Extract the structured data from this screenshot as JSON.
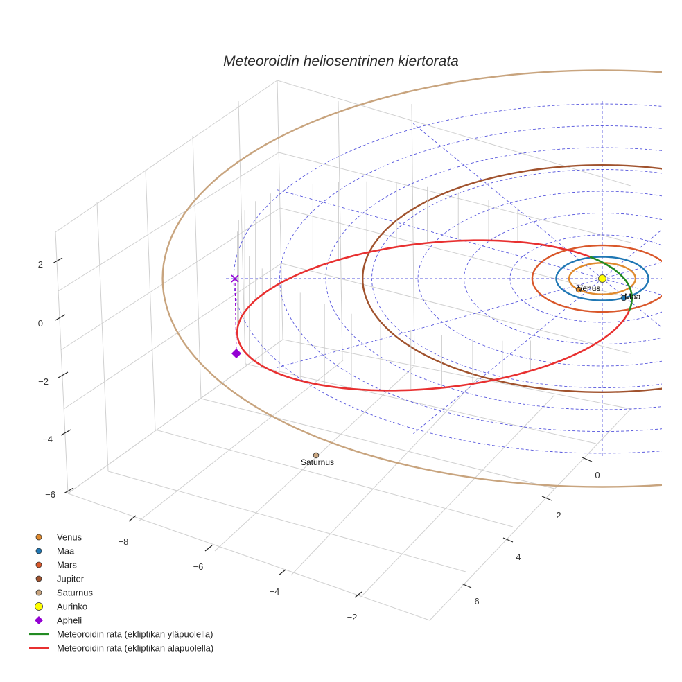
{
  "chart_data": {
    "type": "3d-orbit",
    "title": "Meteoroidin heliosentrinen kiertorata",
    "axes": {
      "x_ticks": [
        "−8",
        "−6",
        "−4",
        "−2"
      ],
      "y_ticks": [
        "0",
        "2",
        "4",
        "6"
      ],
      "z_ticks": [
        "2",
        "0",
        "−2",
        "−4",
        "−6"
      ]
    },
    "planets": [
      {
        "name": "Venus",
        "orbit_au": 0.72,
        "label": "Venus",
        "color": "#e08a2e"
      },
      {
        "name": "Maa",
        "orbit_au": 1.0,
        "label": "Maa",
        "color": "#1f77b4"
      },
      {
        "name": "Mars",
        "orbit_au": 1.52,
        "label": "Ma",
        "color": "#d9572a"
      },
      {
        "name": "Jupiter",
        "orbit_au": 5.2,
        "label": "",
        "color": "#a0522d"
      },
      {
        "name": "Saturnus",
        "orbit_au": 9.54,
        "label": "Saturnus",
        "color": "#c8a47e"
      }
    ],
    "sun": {
      "name": "Aurinko",
      "color": "#ffff00"
    },
    "aphelion": {
      "name": "Apheli",
      "color": "#9400d3"
    },
    "meteoroid": {
      "above_ecliptic": {
        "name": "Meteoroidin rata (ekliptikan yläpuolella)",
        "color": "#228b22"
      },
      "below_ecliptic": {
        "name": "Meteoroidin rata (ekliptikan alapuolella)",
        "color": "#e83030"
      }
    },
    "legend": [
      {
        "label": "Venus",
        "marker": "circle",
        "color": "#e08a2e"
      },
      {
        "label": "Maa",
        "marker": "circle",
        "color": "#1f77b4"
      },
      {
        "label": "Mars",
        "marker": "circle",
        "color": "#d9572a"
      },
      {
        "label": "Jupiter",
        "marker": "circle",
        "color": "#a0522d"
      },
      {
        "label": "Saturnus",
        "marker": "circle",
        "color": "#c8a47e"
      },
      {
        "label": "Aurinko",
        "marker": "circle",
        "color": "#ffff00"
      },
      {
        "label": "Apheli",
        "marker": "diamond",
        "color": "#9400d3"
      },
      {
        "label": "Meteoroidin rata (ekliptikan yläpuolella)",
        "marker": "line",
        "color": "#228b22"
      },
      {
        "label": "Meteoroidin rata (ekliptikan alapuolella)",
        "marker": "line",
        "color": "#e83030"
      }
    ],
    "legend_position": "bottom-left",
    "grid": true
  }
}
